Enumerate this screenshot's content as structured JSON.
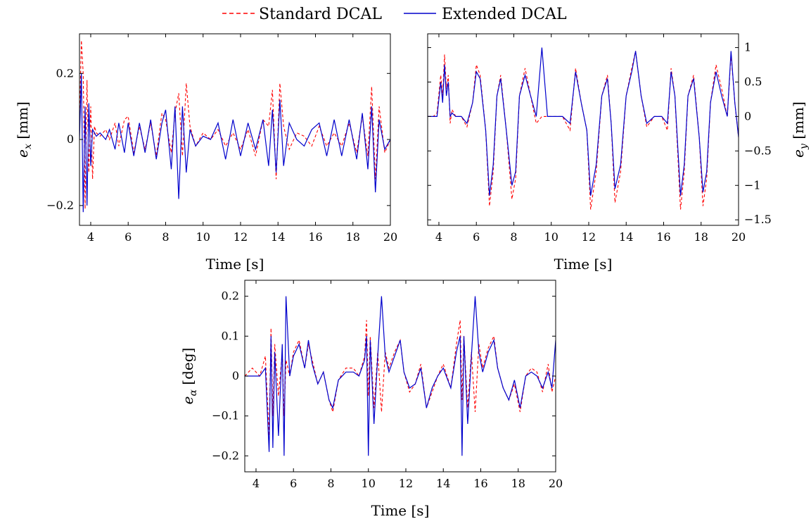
{
  "legend": {
    "standard_label": "Standard DCAL",
    "extended_label": "Extended DCAL"
  },
  "colors": {
    "standard": "#ff0000",
    "extended": "#0000cc",
    "axis": "#000000"
  },
  "chart_data": [
    {
      "id": "ex",
      "type": "line",
      "title": "",
      "xlabel": "Time [s]",
      "ylabel_main": "e",
      "ylabel_sub": "x",
      "ylabel_unit": "[mm]",
      "xlim": [
        3.4,
        20
      ],
      "ylim": [
        -0.26,
        0.32
      ],
      "xticks": [
        4,
        6,
        8,
        10,
        12,
        14,
        16,
        18,
        20
      ],
      "xtick_labels": [
        "4",
        "6",
        "8",
        "10",
        "12",
        "14",
        "16",
        "18",
        "20"
      ],
      "yticks": [
        -0.2,
        0,
        0.2
      ],
      "ytick_labels": [
        "−0.2",
        "0",
        "0.2"
      ],
      "y_axis_side": "left",
      "grid": false,
      "series": [
        {
          "name": "Standard DCAL",
          "x": [
            3.4,
            3.5,
            3.6,
            3.7,
            3.8,
            3.9,
            4.0,
            4.1,
            4.2,
            4.3,
            4.5,
            4.8,
            5.0,
            5.3,
            5.5,
            5.8,
            6.0,
            6.3,
            6.6,
            6.9,
            7.2,
            7.5,
            7.8,
            8.0,
            8.3,
            8.5,
            8.7,
            8.9,
            9.1,
            9.3,
            9.6,
            10.0,
            10.4,
            10.8,
            11.2,
            11.6,
            12.0,
            12.4,
            12.8,
            13.2,
            13.5,
            13.7,
            13.9,
            14.1,
            14.3,
            14.6,
            15.0,
            15.4,
            15.8,
            16.2,
            16.6,
            17.0,
            17.4,
            17.8,
            18.2,
            18.5,
            18.8,
            19.0,
            19.2,
            19.4,
            19.7,
            20.0
          ],
          "y": [
            0.05,
            0.3,
            0.2,
            -0.21,
            0.18,
            -0.1,
            0.1,
            -0.12,
            0.04,
            0.02,
            0.01,
            0.03,
            0.0,
            0.05,
            -0.02,
            0.06,
            0.07,
            -0.04,
            0.04,
            -0.03,
            0.05,
            -0.05,
            0.08,
            0.06,
            -0.04,
            0.08,
            0.14,
            -0.05,
            0.17,
            0.04,
            -0.02,
            0.02,
            0.0,
            0.03,
            -0.02,
            0.02,
            -0.03,
            0.03,
            -0.05,
            0.06,
            0.04,
            0.15,
            -0.12,
            0.17,
            0.04,
            -0.03,
            0.02,
            0.01,
            -0.02,
            0.04,
            -0.02,
            0.02,
            -0.02,
            0.05,
            -0.04,
            0.07,
            -0.05,
            0.16,
            -0.12,
            0.1,
            -0.04,
            0.0
          ]
        },
        {
          "name": "Extended DCAL",
          "x": [
            3.4,
            3.5,
            3.6,
            3.7,
            3.8,
            3.9,
            4.0,
            4.1,
            4.2,
            4.3,
            4.5,
            4.8,
            5.0,
            5.3,
            5.5,
            5.8,
            6.0,
            6.3,
            6.6,
            6.9,
            7.2,
            7.5,
            7.8,
            8.0,
            8.3,
            8.5,
            8.7,
            8.9,
            9.1,
            9.3,
            9.6,
            10.0,
            10.4,
            10.8,
            11.2,
            11.6,
            12.0,
            12.4,
            12.8,
            13.2,
            13.5,
            13.7,
            13.9,
            14.1,
            14.3,
            14.6,
            15.0,
            15.4,
            15.8,
            16.2,
            16.6,
            17.0,
            17.4,
            17.8,
            18.2,
            18.5,
            18.8,
            19.0,
            19.2,
            19.4,
            19.7,
            20.0
          ],
          "y": [
            0.0,
            0.2,
            -0.22,
            0.1,
            -0.2,
            0.11,
            -0.08,
            0.03,
            0.02,
            0.01,
            0.02,
            0.0,
            0.03,
            -0.03,
            0.05,
            -0.04,
            0.05,
            -0.05,
            0.05,
            -0.04,
            0.06,
            -0.06,
            0.05,
            0.09,
            -0.09,
            0.1,
            -0.18,
            0.1,
            -0.1,
            0.03,
            -0.02,
            0.01,
            0.0,
            0.05,
            -0.06,
            0.06,
            -0.05,
            0.05,
            -0.03,
            0.06,
            -0.08,
            0.09,
            -0.1,
            0.12,
            -0.08,
            0.05,
            0.0,
            -0.02,
            0.03,
            0.05,
            -0.05,
            0.06,
            -0.05,
            0.06,
            -0.06,
            0.08,
            -0.09,
            0.1,
            -0.16,
            0.06,
            -0.03,
            0.0
          ]
        }
      ]
    },
    {
      "id": "ey",
      "type": "line",
      "title": "",
      "xlabel": "Time [s]",
      "ylabel_main": "e",
      "ylabel_sub": "y",
      "ylabel_unit": "[mm]",
      "xlim": [
        3.4,
        20
      ],
      "ylim": [
        -1.58,
        1.2
      ],
      "xticks": [
        4,
        6,
        8,
        10,
        12,
        14,
        16,
        18,
        20
      ],
      "xtick_labels": [
        "4",
        "6",
        "8",
        "10",
        "12",
        "14",
        "16",
        "18",
        "20"
      ],
      "yticks": [
        -1.5,
        -1,
        -0.5,
        0,
        0.5,
        1
      ],
      "ytick_labels": [
        "−1.5",
        "−1",
        "−0.5",
        "0",
        "0.5",
        "1"
      ],
      "y_axis_side": "right",
      "grid": false,
      "series": [
        {
          "name": "Standard DCAL",
          "x": [
            3.4,
            3.7,
            3.9,
            4.1,
            4.2,
            4.3,
            4.4,
            4.5,
            4.6,
            4.7,
            4.9,
            5.2,
            5.5,
            5.8,
            6.0,
            6.2,
            6.5,
            6.7,
            6.9,
            7.1,
            7.3,
            7.6,
            7.9,
            8.1,
            8.3,
            8.6,
            8.9,
            9.2,
            9.5,
            9.8,
            10.2,
            10.6,
            11.0,
            11.3,
            11.6,
            11.9,
            12.1,
            12.4,
            12.7,
            13.0,
            13.2,
            13.4,
            13.7,
            14.0,
            14.3,
            14.5,
            14.8,
            15.1,
            15.5,
            15.9,
            16.2,
            16.4,
            16.6,
            16.9,
            17.1,
            17.3,
            17.6,
            17.9,
            18.1,
            18.3,
            18.5,
            18.8,
            19.1,
            19.4,
            19.6,
            19.8,
            20.0
          ],
          "y": [
            0.0,
            0.0,
            0.05,
            0.6,
            0.3,
            0.9,
            0.4,
            0.6,
            -0.1,
            0.1,
            0.0,
            0.0,
            -0.15,
            0.2,
            0.75,
            0.6,
            -0.2,
            -1.3,
            -0.8,
            0.3,
            0.6,
            -0.2,
            -1.2,
            -0.9,
            0.3,
            0.7,
            0.3,
            -0.1,
            0.0,
            0.0,
            0.0,
            0.0,
            -0.2,
            0.7,
            0.2,
            -0.2,
            -1.35,
            -0.8,
            0.3,
            0.6,
            -0.1,
            -1.25,
            -0.8,
            0.3,
            0.7,
            0.95,
            0.3,
            -0.15,
            0.0,
            0.0,
            -0.2,
            0.7,
            0.3,
            -1.35,
            -0.8,
            0.3,
            0.6,
            -0.3,
            -1.3,
            -0.9,
            0.2,
            0.75,
            0.4,
            0.0,
            0.9,
            0.2,
            -0.3
          ]
        },
        {
          "name": "Extended DCAL",
          "x": [
            3.4,
            3.7,
            3.9,
            4.1,
            4.2,
            4.3,
            4.4,
            4.5,
            4.6,
            4.7,
            4.9,
            5.2,
            5.5,
            5.8,
            6.0,
            6.2,
            6.5,
            6.7,
            6.9,
            7.1,
            7.3,
            7.6,
            7.9,
            8.1,
            8.3,
            8.6,
            8.9,
            9.2,
            9.5,
            9.8,
            10.2,
            10.6,
            11.0,
            11.3,
            11.6,
            11.9,
            12.1,
            12.4,
            12.7,
            13.0,
            13.2,
            13.4,
            13.7,
            14.0,
            14.3,
            14.5,
            14.8,
            15.1,
            15.5,
            15.9,
            16.2,
            16.4,
            16.6,
            16.9,
            17.1,
            17.3,
            17.6,
            17.9,
            18.1,
            18.3,
            18.5,
            18.8,
            19.1,
            19.4,
            19.6,
            19.8,
            20.0
          ],
          "y": [
            0.0,
            0.0,
            0.0,
            0.5,
            0.2,
            0.75,
            0.3,
            0.5,
            0.0,
            0.05,
            0.0,
            0.0,
            -0.1,
            0.2,
            0.65,
            0.55,
            -0.2,
            -1.15,
            -0.7,
            0.3,
            0.55,
            -0.2,
            -1.0,
            -0.8,
            0.3,
            0.6,
            0.3,
            0.0,
            1.0,
            0.0,
            0.0,
            0.0,
            -0.1,
            0.65,
            0.2,
            -0.2,
            -1.15,
            -0.7,
            0.3,
            0.55,
            -0.1,
            -1.05,
            -0.7,
            0.3,
            0.65,
            0.95,
            0.3,
            -0.1,
            0.0,
            0.0,
            -0.1,
            0.65,
            0.3,
            -1.15,
            -0.7,
            0.3,
            0.55,
            -0.3,
            -1.1,
            -0.8,
            0.2,
            0.65,
            0.3,
            0.0,
            0.95,
            0.2,
            -0.3
          ]
        }
      ]
    },
    {
      "id": "ealpha",
      "type": "line",
      "title": "",
      "xlabel": "Time [s]",
      "ylabel_main": "e",
      "ylabel_sub": "α",
      "ylabel_unit": "[deg]",
      "xlim": [
        3.4,
        20
      ],
      "ylim": [
        -0.24,
        0.24
      ],
      "xticks": [
        4,
        6,
        8,
        10,
        12,
        14,
        16,
        18,
        20
      ],
      "xtick_labels": [
        "4",
        "6",
        "8",
        "10",
        "12",
        "14",
        "16",
        "18",
        "20"
      ],
      "yticks": [
        -0.2,
        -0.1,
        0,
        0.1,
        0.2
      ],
      "ytick_labels": [
        "−0.2",
        "−0.1",
        "0",
        "0.1",
        "0.2"
      ],
      "y_axis_side": "left",
      "grid": false,
      "series": [
        {
          "name": "Standard DCAL",
          "x": [
            3.4,
            3.8,
            4.2,
            4.5,
            4.7,
            4.8,
            4.9,
            5.0,
            5.2,
            5.4,
            5.5,
            5.6,
            5.8,
            6.0,
            6.3,
            6.6,
            6.8,
            7.0,
            7.3,
            7.6,
            7.9,
            8.1,
            8.4,
            8.8,
            9.2,
            9.5,
            9.8,
            9.9,
            10.0,
            10.1,
            10.3,
            10.5,
            10.7,
            10.9,
            11.1,
            11.4,
            11.7,
            11.9,
            12.2,
            12.5,
            12.8,
            13.1,
            13.4,
            13.7,
            14.0,
            14.4,
            14.7,
            14.9,
            15.0,
            15.1,
            15.3,
            15.5,
            15.7,
            15.9,
            16.1,
            16.4,
            16.7,
            16.9,
            17.2,
            17.5,
            17.8,
            18.1,
            18.4,
            18.7,
            19.0,
            19.3,
            19.6,
            19.8,
            20.0
          ],
          "y": [
            0.0,
            0.02,
            0.0,
            0.05,
            -0.15,
            0.12,
            -0.1,
            0.08,
            -0.05,
            0.06,
            -0.1,
            0.04,
            0.0,
            0.06,
            0.09,
            0.02,
            0.08,
            0.04,
            -0.02,
            0.01,
            -0.06,
            -0.09,
            -0.01,
            0.02,
            0.02,
            0.0,
            0.05,
            0.14,
            -0.05,
            0.1,
            -0.08,
            0.06,
            -0.09,
            0.06,
            0.02,
            0.06,
            0.09,
            0.01,
            -0.04,
            -0.02,
            0.03,
            -0.08,
            -0.04,
            0.0,
            0.03,
            -0.03,
            0.08,
            0.14,
            -0.06,
            0.1,
            -0.08,
            0.06,
            -0.09,
            0.08,
            0.02,
            0.07,
            0.1,
            0.02,
            -0.03,
            -0.06,
            -0.02,
            -0.09,
            0.0,
            0.02,
            0.01,
            -0.04,
            0.03,
            -0.04,
            0.0
          ]
        },
        {
          "name": "Extended DCAL",
          "x": [
            3.4,
            3.8,
            4.2,
            4.5,
            4.7,
            4.8,
            4.9,
            5.0,
            5.2,
            5.4,
            5.5,
            5.6,
            5.8,
            6.0,
            6.3,
            6.6,
            6.8,
            7.0,
            7.3,
            7.6,
            7.9,
            8.1,
            8.4,
            8.8,
            9.2,
            9.5,
            9.8,
            9.9,
            10.0,
            10.1,
            10.3,
            10.5,
            10.7,
            10.9,
            11.1,
            11.4,
            11.7,
            11.9,
            12.2,
            12.5,
            12.8,
            13.1,
            13.4,
            13.7,
            14.0,
            14.4,
            14.7,
            14.9,
            15.0,
            15.1,
            15.3,
            15.5,
            15.7,
            15.9,
            16.1,
            16.4,
            16.7,
            16.9,
            17.2,
            17.5,
            17.8,
            18.1,
            18.4,
            18.7,
            19.0,
            19.3,
            19.6,
            19.8,
            20.0
          ],
          "y": [
            0.0,
            0.0,
            0.0,
            0.02,
            -0.19,
            0.1,
            -0.18,
            0.06,
            -0.15,
            0.08,
            -0.2,
            0.2,
            0.0,
            0.05,
            0.08,
            0.02,
            0.09,
            0.03,
            -0.02,
            0.01,
            -0.06,
            -0.08,
            -0.01,
            0.01,
            0.01,
            0.0,
            0.04,
            0.1,
            -0.2,
            0.09,
            -0.12,
            0.05,
            0.2,
            0.05,
            0.01,
            0.05,
            0.09,
            0.01,
            -0.03,
            -0.02,
            0.02,
            -0.08,
            -0.03,
            0.0,
            0.02,
            -0.03,
            0.06,
            0.1,
            -0.2,
            0.1,
            -0.12,
            0.05,
            0.2,
            0.06,
            0.01,
            0.06,
            0.09,
            0.02,
            -0.03,
            -0.06,
            -0.01,
            -0.08,
            0.0,
            0.01,
            0.0,
            -0.03,
            0.01,
            -0.03,
            0.09
          ]
        }
      ]
    }
  ]
}
